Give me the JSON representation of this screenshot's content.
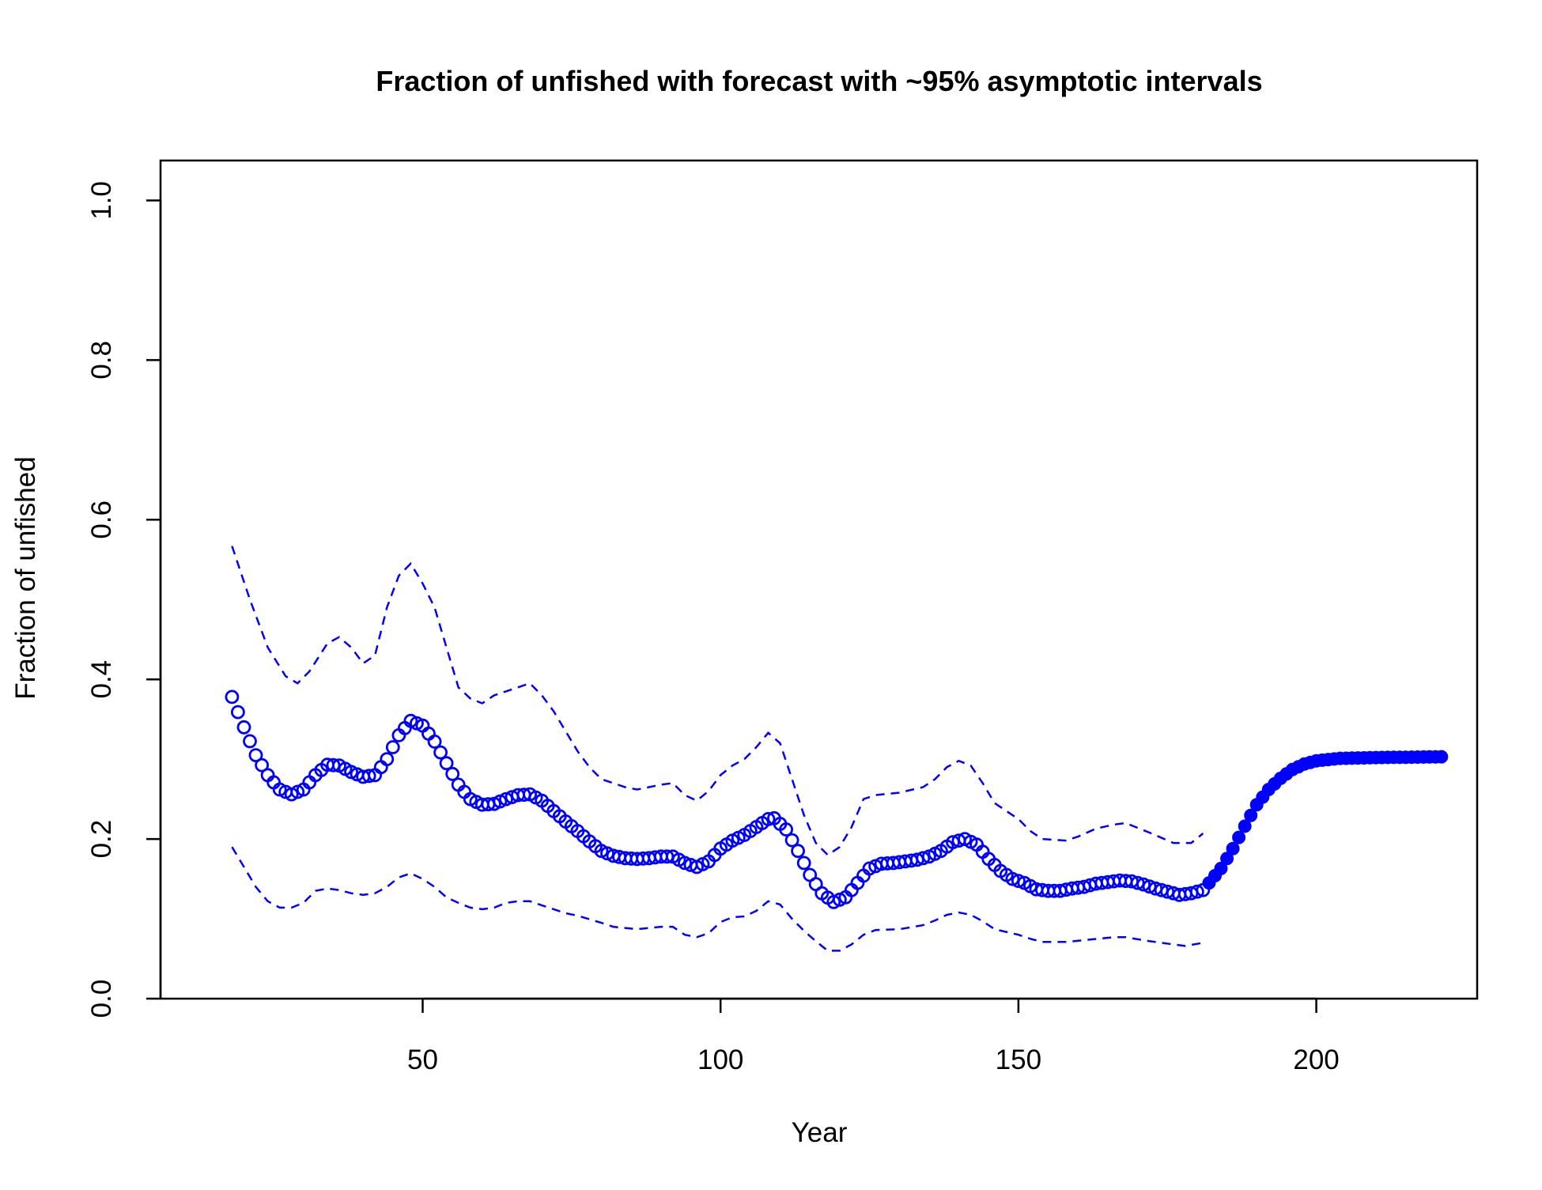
{
  "chart_data": {
    "type": "line",
    "title": "Fraction of unfished with forecast with ~95% asymptotic intervals",
    "xlabel": "Year",
    "ylabel": "Fraction of unfished",
    "xlim": [
      6,
      227
    ],
    "ylim": [
      0,
      1.05
    ],
    "x_ticks": [
      50,
      100,
      150,
      200
    ],
    "y_ticks": [
      0.0,
      0.2,
      0.4,
      0.6,
      0.8,
      1.0
    ],
    "x_tick_labels": [
      "50",
      "100",
      "150",
      "200"
    ],
    "y_tick_labels": [
      "0.0",
      "0.2",
      "0.4",
      "0.6",
      "0.8",
      "1.0"
    ],
    "grid": false,
    "legend": "none",
    "colors": {
      "series": "#0000ff",
      "axis": "#000000"
    },
    "estimate_knots": [
      [
        18,
        0.378
      ],
      [
        20,
        0.34
      ],
      [
        22,
        0.305
      ],
      [
        24,
        0.28
      ],
      [
        26,
        0.262
      ],
      [
        28,
        0.256
      ],
      [
        30,
        0.262
      ],
      [
        32,
        0.28
      ],
      [
        34,
        0.293
      ],
      [
        36,
        0.292
      ],
      [
        38,
        0.284
      ],
      [
        40,
        0.278
      ],
      [
        42,
        0.28
      ],
      [
        44,
        0.3
      ],
      [
        46,
        0.33
      ],
      [
        48,
        0.348
      ],
      [
        50,
        0.342
      ],
      [
        52,
        0.322
      ],
      [
        54,
        0.295
      ],
      [
        56,
        0.268
      ],
      [
        58,
        0.25
      ],
      [
        60,
        0.243
      ],
      [
        62,
        0.244
      ],
      [
        64,
        0.25
      ],
      [
        66,
        0.255
      ],
      [
        68,
        0.256
      ],
      [
        70,
        0.248
      ],
      [
        72,
        0.235
      ],
      [
        74,
        0.222
      ],
      [
        76,
        0.21
      ],
      [
        78,
        0.197
      ],
      [
        80,
        0.185
      ],
      [
        82,
        0.179
      ],
      [
        84,
        0.176
      ],
      [
        86,
        0.175
      ],
      [
        88,
        0.176
      ],
      [
        90,
        0.178
      ],
      [
        92,
        0.178
      ],
      [
        94,
        0.17
      ],
      [
        96,
        0.165
      ],
      [
        98,
        0.172
      ],
      [
        100,
        0.188
      ],
      [
        102,
        0.198
      ],
      [
        104,
        0.205
      ],
      [
        106,
        0.215
      ],
      [
        108,
        0.225
      ],
      [
        109,
        0.226
      ],
      [
        111,
        0.212
      ],
      [
        113,
        0.185
      ],
      [
        115,
        0.155
      ],
      [
        117,
        0.132
      ],
      [
        119,
        0.121
      ],
      [
        121,
        0.127
      ],
      [
        123,
        0.145
      ],
      [
        125,
        0.163
      ],
      [
        127,
        0.169
      ],
      [
        129,
        0.17
      ],
      [
        131,
        0.172
      ],
      [
        133,
        0.174
      ],
      [
        135,
        0.178
      ],
      [
        137,
        0.185
      ],
      [
        139,
        0.196
      ],
      [
        141,
        0.2
      ],
      [
        143,
        0.193
      ],
      [
        145,
        0.175
      ],
      [
        147,
        0.16
      ],
      [
        149,
        0.15
      ],
      [
        151,
        0.145
      ],
      [
        153,
        0.137
      ],
      [
        155,
        0.135
      ],
      [
        157,
        0.135
      ],
      [
        159,
        0.138
      ],
      [
        161,
        0.14
      ],
      [
        163,
        0.144
      ],
      [
        165,
        0.146
      ],
      [
        167,
        0.148
      ],
      [
        169,
        0.147
      ],
      [
        171,
        0.143
      ],
      [
        173,
        0.138
      ],
      [
        175,
        0.134
      ],
      [
        177,
        0.13
      ],
      [
        179,
        0.132
      ],
      [
        181,
        0.136
      ]
    ],
    "forecast_knots": [
      [
        182,
        0.145
      ],
      [
        184,
        0.163
      ],
      [
        186,
        0.188
      ],
      [
        188,
        0.216
      ],
      [
        190,
        0.243
      ],
      [
        192,
        0.262
      ],
      [
        194,
        0.276
      ],
      [
        196,
        0.287
      ],
      [
        198,
        0.294
      ],
      [
        200,
        0.298
      ],
      [
        204,
        0.301
      ],
      [
        210,
        0.302
      ],
      [
        221,
        0.303
      ]
    ],
    "upper_ci": [
      [
        18,
        0.567
      ],
      [
        21,
        0.5
      ],
      [
        24,
        0.44
      ],
      [
        27,
        0.404
      ],
      [
        29,
        0.395
      ],
      [
        31,
        0.41
      ],
      [
        34,
        0.445
      ],
      [
        36,
        0.453
      ],
      [
        38,
        0.44
      ],
      [
        40,
        0.42
      ],
      [
        42,
        0.43
      ],
      [
        44,
        0.49
      ],
      [
        46,
        0.53
      ],
      [
        48,
        0.545
      ],
      [
        50,
        0.52
      ],
      [
        52,
        0.49
      ],
      [
        54,
        0.44
      ],
      [
        56,
        0.39
      ],
      [
        58,
        0.376
      ],
      [
        60,
        0.37
      ],
      [
        62,
        0.38
      ],
      [
        66,
        0.39
      ],
      [
        68,
        0.395
      ],
      [
        70,
        0.38
      ],
      [
        72,
        0.36
      ],
      [
        74,
        0.335
      ],
      [
        76,
        0.31
      ],
      [
        78,
        0.29
      ],
      [
        80,
        0.275
      ],
      [
        84,
        0.265
      ],
      [
        86,
        0.262
      ],
      [
        90,
        0.268
      ],
      [
        92,
        0.27
      ],
      [
        94,
        0.255
      ],
      [
        96,
        0.248
      ],
      [
        98,
        0.26
      ],
      [
        100,
        0.28
      ],
      [
        102,
        0.292
      ],
      [
        104,
        0.3
      ],
      [
        106,
        0.315
      ],
      [
        108,
        0.333
      ],
      [
        110,
        0.32
      ],
      [
        112,
        0.275
      ],
      [
        114,
        0.23
      ],
      [
        116,
        0.195
      ],
      [
        118,
        0.18
      ],
      [
        120,
        0.19
      ],
      [
        122,
        0.215
      ],
      [
        124,
        0.25
      ],
      [
        126,
        0.255
      ],
      [
        130,
        0.258
      ],
      [
        134,
        0.265
      ],
      [
        136,
        0.275
      ],
      [
        138,
        0.29
      ],
      [
        140,
        0.298
      ],
      [
        142,
        0.292
      ],
      [
        144,
        0.27
      ],
      [
        146,
        0.245
      ],
      [
        150,
        0.225
      ],
      [
        152,
        0.21
      ],
      [
        154,
        0.2
      ],
      [
        158,
        0.198
      ],
      [
        160,
        0.203
      ],
      [
        163,
        0.213
      ],
      [
        166,
        0.218
      ],
      [
        168,
        0.22
      ],
      [
        172,
        0.208
      ],
      [
        176,
        0.195
      ],
      [
        179,
        0.195
      ],
      [
        181,
        0.207
      ]
    ],
    "lower_ci": [
      [
        18,
        0.19
      ],
      [
        20,
        0.165
      ],
      [
        22,
        0.14
      ],
      [
        24,
        0.122
      ],
      [
        26,
        0.114
      ],
      [
        28,
        0.114
      ],
      [
        30,
        0.12
      ],
      [
        32,
        0.135
      ],
      [
        34,
        0.138
      ],
      [
        36,
        0.136
      ],
      [
        38,
        0.132
      ],
      [
        40,
        0.13
      ],
      [
        42,
        0.132
      ],
      [
        44,
        0.14
      ],
      [
        46,
        0.152
      ],
      [
        48,
        0.157
      ],
      [
        50,
        0.15
      ],
      [
        52,
        0.14
      ],
      [
        54,
        0.127
      ],
      [
        56,
        0.12
      ],
      [
        58,
        0.114
      ],
      [
        60,
        0.112
      ],
      [
        62,
        0.114
      ],
      [
        64,
        0.12
      ],
      [
        66,
        0.122
      ],
      [
        68,
        0.122
      ],
      [
        70,
        0.117
      ],
      [
        72,
        0.112
      ],
      [
        74,
        0.107
      ],
      [
        76,
        0.104
      ],
      [
        80,
        0.095
      ],
      [
        82,
        0.09
      ],
      [
        86,
        0.087
      ],
      [
        90,
        0.09
      ],
      [
        92,
        0.09
      ],
      [
        94,
        0.08
      ],
      [
        96,
        0.077
      ],
      [
        98,
        0.082
      ],
      [
        100,
        0.096
      ],
      [
        102,
        0.102
      ],
      [
        104,
        0.103
      ],
      [
        106,
        0.11
      ],
      [
        108,
        0.122
      ],
      [
        110,
        0.118
      ],
      [
        112,
        0.1
      ],
      [
        114,
        0.085
      ],
      [
        116,
        0.072
      ],
      [
        118,
        0.06
      ],
      [
        120,
        0.06
      ],
      [
        122,
        0.068
      ],
      [
        124,
        0.08
      ],
      [
        126,
        0.086
      ],
      [
        130,
        0.087
      ],
      [
        134,
        0.092
      ],
      [
        136,
        0.098
      ],
      [
        138,
        0.105
      ],
      [
        140,
        0.108
      ],
      [
        142,
        0.105
      ],
      [
        144,
        0.097
      ],
      [
        146,
        0.087
      ],
      [
        150,
        0.08
      ],
      [
        152,
        0.075
      ],
      [
        154,
        0.071
      ],
      [
        158,
        0.071
      ],
      [
        162,
        0.074
      ],
      [
        166,
        0.077
      ],
      [
        168,
        0.077
      ],
      [
        172,
        0.072
      ],
      [
        176,
        0.068
      ],
      [
        178,
        0.066
      ],
      [
        181,
        0.07
      ]
    ]
  }
}
